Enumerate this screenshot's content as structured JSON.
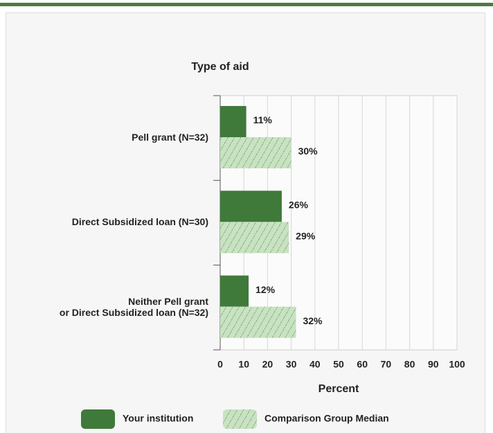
{
  "chart_data": {
    "type": "hbar",
    "title": "Type of aid",
    "xlabel": "Percent",
    "categories": [
      "Pell grant  (N=32)",
      "Direct Subsidized loan (N=30)",
      "Neither Pell grant\nor Direct Subsidized loan (N=32)"
    ],
    "series": [
      {
        "name": "Your institution",
        "color": "#3f7a3a",
        "values": [
          11,
          26,
          12
        ],
        "value_labels": [
          "11%",
          "26%",
          "12%"
        ]
      },
      {
        "name": "Comparison Group Median",
        "color": "#c8e2c2",
        "hatch": true,
        "values": [
          30,
          29,
          32
        ],
        "value_labels": [
          "30%",
          "29%",
          "32%"
        ]
      }
    ],
    "xlim": [
      0,
      100
    ],
    "xticks": [
      0,
      10,
      20,
      30,
      40,
      50,
      60,
      70,
      80,
      90,
      100
    ],
    "grid": true
  }
}
